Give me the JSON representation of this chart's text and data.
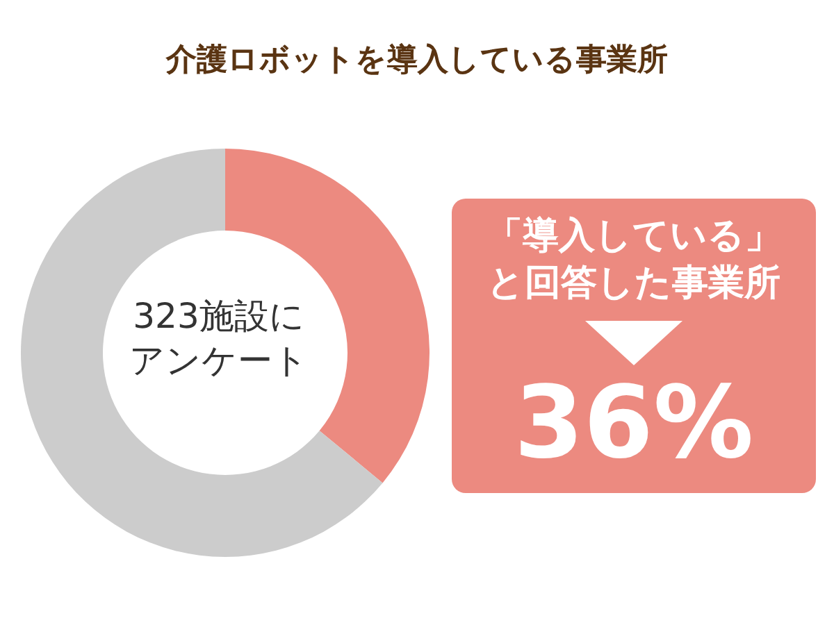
{
  "chart_data": {
    "type": "donut",
    "title": "介護ロボットを導入している事業所",
    "categories": [
      null,
      null
    ],
    "values": [
      36,
      64
    ],
    "colors": [
      "#ec8a80",
      "#cccccc"
    ],
    "value_labels": [
      "36%",
      null
    ],
    "annotations": [
      "323施設にアンケート",
      "「導入している」と回答した事業所"
    ],
    "legend": false
  }
}
